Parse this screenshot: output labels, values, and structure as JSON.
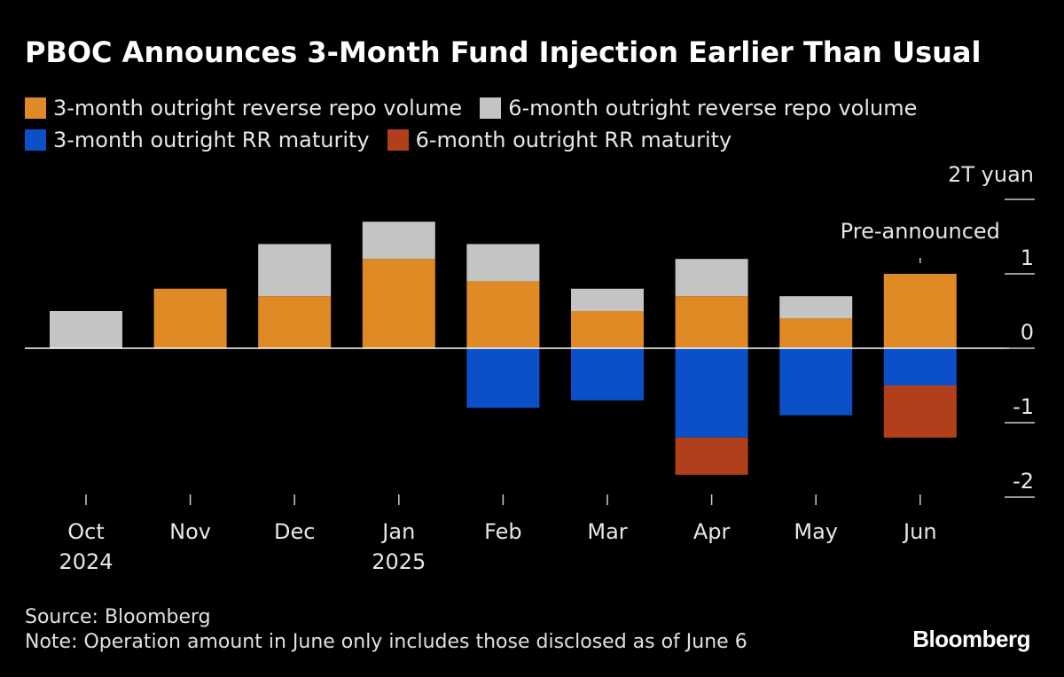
{
  "chart_data": {
    "type": "bar",
    "stacked": true,
    "title": "PBOC Announces 3-Month Fund Injection Earlier Than Usual",
    "categories": [
      "Oct",
      "Nov",
      "Dec",
      "Jan",
      "Feb",
      "Mar",
      "Apr",
      "May",
      "Jun"
    ],
    "category_years": [
      "2024",
      "",
      "",
      "2025",
      "",
      "",
      "",
      "",
      ""
    ],
    "series": [
      {
        "name": "3-month outright reverse repo volume",
        "color": "#e08a26",
        "values": [
          0,
          0.8,
          0.7,
          1.2,
          0.9,
          0.5,
          0.7,
          0.4,
          1.0
        ]
      },
      {
        "name": "6-month outright reverse repo volume",
        "color": "#c4c4c4",
        "values": [
          0.5,
          0,
          0.7,
          0.5,
          0.5,
          0.3,
          0.5,
          0.3,
          0
        ]
      },
      {
        "name": "3-month outright RR maturity",
        "color": "#0b50c8",
        "values": [
          0,
          0,
          0,
          0,
          -0.8,
          -0.7,
          -1.2,
          -0.9,
          -0.5
        ]
      },
      {
        "name": "6-month outright RR maturity",
        "color": "#b23f1c",
        "values": [
          0,
          0,
          0,
          0,
          0,
          0,
          -0.5,
          0,
          -0.7
        ]
      }
    ],
    "yaxis": {
      "unit_label": "2T yuan",
      "ticks": [
        2,
        1,
        0,
        -1,
        -2
      ],
      "tick_labels": [
        "",
        "1",
        "0",
        "-1",
        "-2"
      ],
      "ylim": [
        -2,
        2
      ],
      "position": "right"
    },
    "annotation": {
      "text": "Pre-announced",
      "category": "Jun"
    },
    "grid": false,
    "legend_placement": "top"
  },
  "footer": {
    "source": "Source: Bloomberg",
    "note": "Note: Operation amount in June only includes those disclosed as of June 6",
    "logo": "Bloomberg"
  }
}
